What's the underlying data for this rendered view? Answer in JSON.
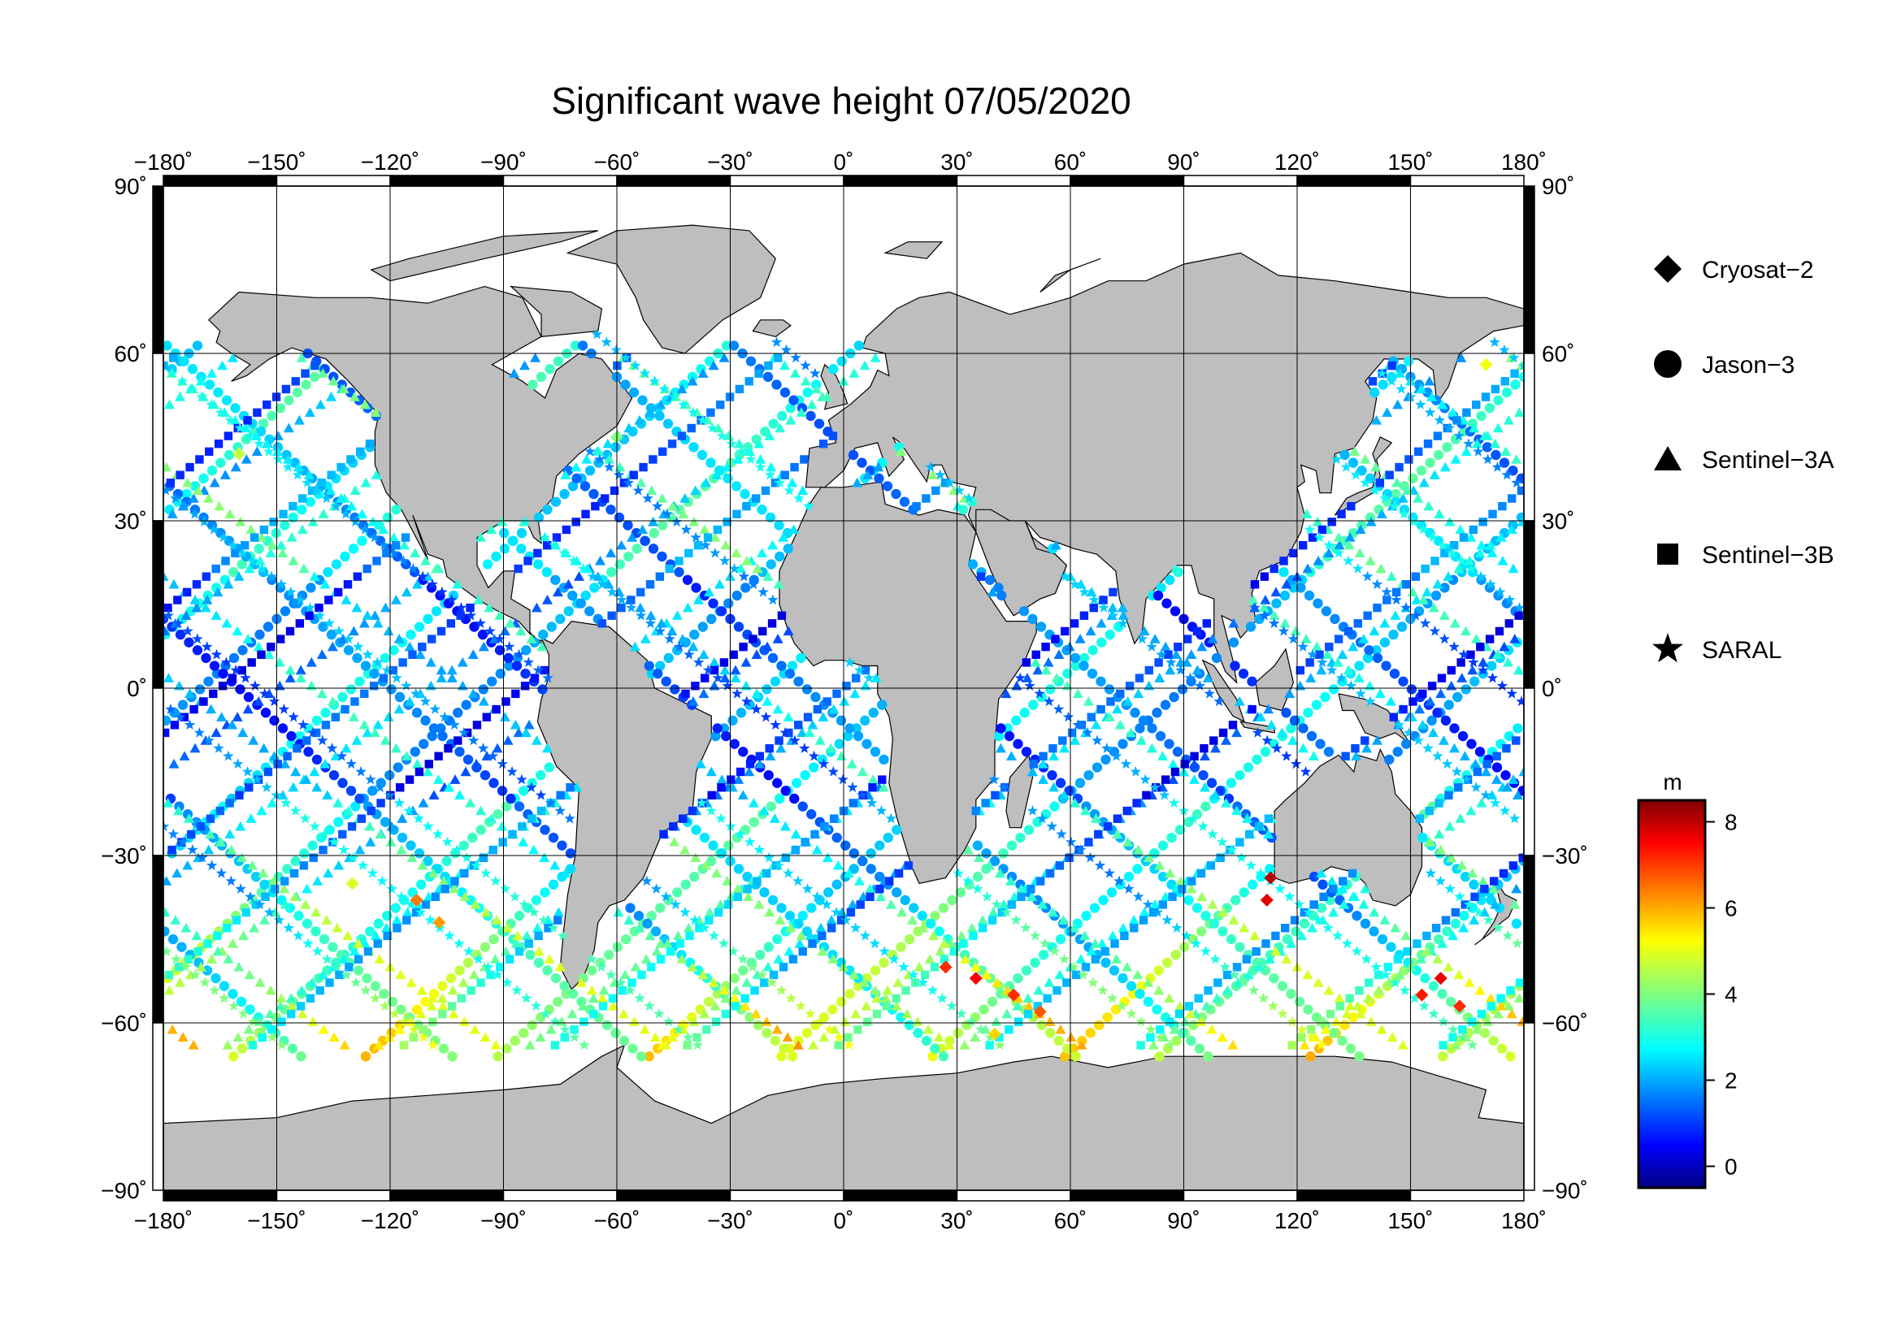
{
  "title": "Significant wave height 07/05/2020",
  "x_ticks": [
    {
      "value": -180,
      "label": "−180˚"
    },
    {
      "value": -150,
      "label": "−150˚"
    },
    {
      "value": -120,
      "label": "−120˚"
    },
    {
      "value": -90,
      "label": "−90˚"
    },
    {
      "value": -60,
      "label": "−60˚"
    },
    {
      "value": -30,
      "label": "−30˚"
    },
    {
      "value": 0,
      "label": "0˚"
    },
    {
      "value": 30,
      "label": "30˚"
    },
    {
      "value": 60,
      "label": "60˚"
    },
    {
      "value": 90,
      "label": "90˚"
    },
    {
      "value": 120,
      "label": "120˚"
    },
    {
      "value": 150,
      "label": "150˚"
    },
    {
      "value": 180,
      "label": "180˚"
    }
  ],
  "y_ticks": [
    {
      "value": 90,
      "label": "90˚"
    },
    {
      "value": 60,
      "label": "60˚"
    },
    {
      "value": 30,
      "label": "30˚"
    },
    {
      "value": 0,
      "label": "0˚"
    },
    {
      "value": -30,
      "label": "−30˚"
    },
    {
      "value": -60,
      "label": "−60˚"
    },
    {
      "value": -90,
      "label": "−90˚"
    }
  ],
  "legend": [
    {
      "symbol": "diamond",
      "label": "Cryosat−2"
    },
    {
      "symbol": "circle",
      "label": "Jason−3"
    },
    {
      "symbol": "triangle",
      "label": "Sentinel−3A"
    },
    {
      "symbol": "square",
      "label": "Sentinel−3B"
    },
    {
      "symbol": "star",
      "label": "SARAL"
    }
  ],
  "colorbar": {
    "unit": "m",
    "range": [
      -0.5,
      8.5
    ],
    "ticks": [
      {
        "value": 0,
        "label": "0"
      },
      {
        "value": 2,
        "label": "2"
      },
      {
        "value": 4,
        "label": "4"
      },
      {
        "value": 6,
        "label": "6"
      },
      {
        "value": 8,
        "label": "8"
      }
    ],
    "colormap": "jet"
  },
  "colors": {
    "land": "#bebebe",
    "ocean": "#ffffff",
    "frame": "#000000",
    "grid": "#000000"
  },
  "chart_data": {
    "type": "scatter",
    "projection": "equirectangular",
    "xlim": [
      -180,
      180
    ],
    "ylim": [
      -90,
      90
    ],
    "grid": true,
    "legend_position": "right",
    "value_name": "significant wave height (m)",
    "track_sets": [
      {
        "symbol": "circle",
        "value": 3.0,
        "slope": 0.62,
        "lon0": [
          -170,
          -130,
          -95,
          -55,
          -20,
          15,
          55,
          90,
          130,
          165
        ],
        "lat_range": [
          -66,
          62
        ]
      },
      {
        "symbol": "circle",
        "value": 2.0,
        "slope": -0.62,
        "lon0": [
          -160,
          -120,
          -80,
          -45,
          -10,
          30,
          70,
          110,
          150
        ],
        "lat_range": [
          -66,
          62
        ]
      },
      {
        "symbol": "triangle",
        "value": 2.6,
        "slope": 0.5,
        "lon0": [
          -150,
          -110,
          -70,
          -35,
          5,
          45,
          80,
          120,
          160
        ],
        "lat_range": [
          -64,
          60
        ]
      },
      {
        "symbol": "triangle",
        "value": 3.4,
        "slope": -0.5,
        "lon0": [
          -175,
          -140,
          -100,
          -65,
          -25,
          20,
          60,
          100,
          140
        ],
        "lat_range": [
          -64,
          60
        ]
      },
      {
        "symbol": "square",
        "value": 1.6,
        "slope": 0.55,
        "lon0": [
          -165,
          -125,
          -85,
          -40,
          0,
          40,
          75,
          115,
          155
        ],
        "lat_range": [
          -64,
          60
        ]
      },
      {
        "symbol": "star",
        "value": 2.4,
        "slope": -0.55,
        "lon0": [
          -155,
          -115,
          -75,
          -30,
          10,
          50,
          95,
          135,
          175
        ],
        "lat_range": [
          -64,
          65
        ]
      }
    ],
    "high_seas": [
      {
        "lon": -113,
        "lat": -38,
        "value": 6.3
      },
      {
        "lon": -107,
        "lat": -42,
        "value": 6.0
      },
      {
        "lon": 27,
        "lat": -50,
        "value": 7.0
      },
      {
        "lon": 35,
        "lat": -52,
        "value": 7.4
      },
      {
        "lon": 45,
        "lat": -55,
        "value": 7.0
      },
      {
        "lon": 52,
        "lat": -58,
        "value": 6.6
      },
      {
        "lon": 112,
        "lat": -38,
        "value": 7.6
      },
      {
        "lon": 113,
        "lat": -34,
        "value": 8.0
      },
      {
        "lon": 153,
        "lat": -55,
        "value": 7.2
      },
      {
        "lon": 158,
        "lat": -52,
        "value": 7.6
      },
      {
        "lon": 163,
        "lat": -57,
        "value": 7.0
      },
      {
        "lon": 170,
        "lat": 58,
        "value": 5.0
      },
      {
        "lon": -160,
        "lat": 42,
        "value": 4.6
      },
      {
        "lon": -130,
        "lat": -35,
        "value": 4.8
      },
      {
        "lon": -60,
        "lat": 45,
        "value": 4.0
      },
      {
        "lon": 40,
        "lat": -62,
        "value": 5.5
      }
    ]
  }
}
